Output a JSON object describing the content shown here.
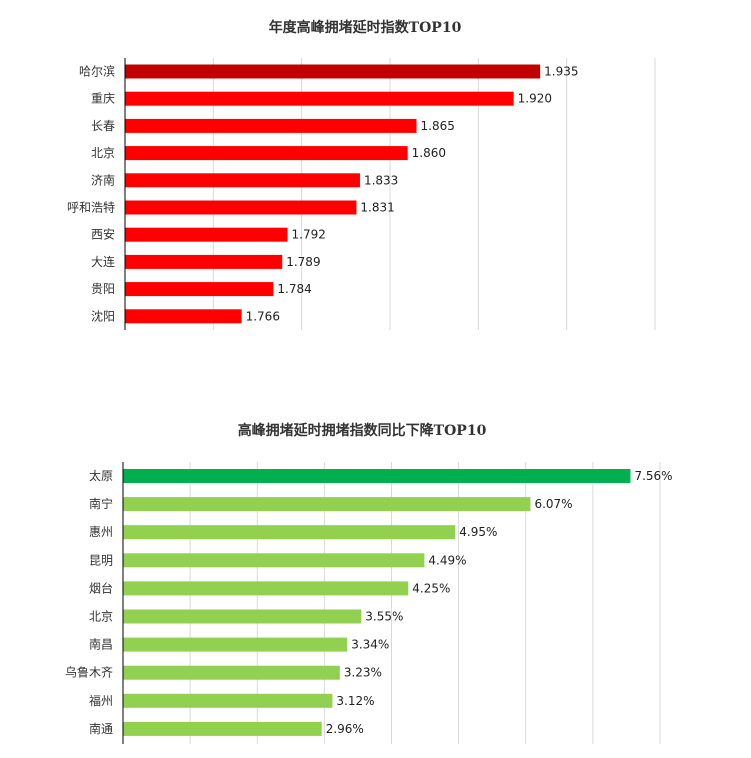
{
  "chart_data": [
    {
      "type": "bar",
      "orientation": "horizontal",
      "title": "年度高峰拥堵延时指数TOP10",
      "categories": [
        "哈尔滨",
        "重庆",
        "长春",
        "北京",
        "济南",
        "呼和浩特",
        "西安",
        "大连",
        "贵阳",
        "沈阳"
      ],
      "values": [
        1.935,
        1.92,
        1.865,
        1.86,
        1.833,
        1.831,
        1.792,
        1.789,
        1.784,
        1.766
      ],
      "value_labels": [
        "1.935",
        "1.920",
        "1.865",
        "1.860",
        "1.833",
        "1.831",
        "1.792",
        "1.789",
        "1.784",
        "1.766"
      ],
      "xlim": [
        1.7,
        2.0
      ],
      "grid": true,
      "colors": {
        "highlight": "#c00000",
        "bar": "#ff0000"
      }
    },
    {
      "type": "bar",
      "orientation": "horizontal",
      "title": "高峰拥堵延时拥堵指数同比下降TOP10",
      "categories": [
        "太原",
        "南宁",
        "惠州",
        "昆明",
        "烟台",
        "北京",
        "南昌",
        "乌鲁木齐",
        "福州",
        "南通"
      ],
      "values": [
        7.56,
        6.07,
        4.95,
        4.49,
        4.25,
        3.55,
        3.34,
        3.23,
        3.12,
        2.96
      ],
      "value_labels": [
        "7.56%",
        "6.07%",
        "4.95%",
        "4.49%",
        "4.25%",
        "3.55%",
        "3.34%",
        "3.23%",
        "3.12%",
        "2.96%"
      ],
      "xlim": [
        0,
        8
      ],
      "grid": true,
      "colors": {
        "highlight": "#00b050",
        "bar": "#92d050"
      }
    }
  ]
}
